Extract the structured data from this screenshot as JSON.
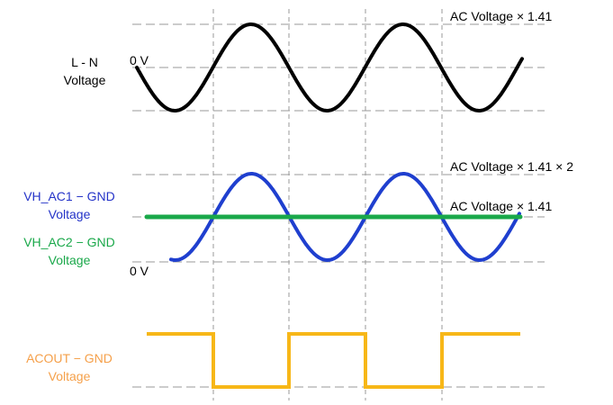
{
  "colors": {
    "grid": "#9a9a9a",
    "ln_wave": "#000000",
    "vh_ac1": "#1f3fcf",
    "vh_ac2": "#1aa84a",
    "acout": "#f7b718",
    "text_dark": "#000000",
    "text_blue": "#2433c8",
    "text_green": "#1aa84a",
    "text_orange": "#f5a04a"
  },
  "labels": {
    "ln_line1": "L - N",
    "ln_line2": "Voltage",
    "ln_zero": "0 V",
    "ln_peak": "AC Voltage × 1.41",
    "vh1_line1": "VH_AC1 − GND",
    "vh1_line2": "Voltage",
    "vh2_line1": "VH_AC2 − GND",
    "vh2_line2": "Voltage",
    "vh_zero": "0 V",
    "vh_peak2": "AC Voltage × 1.41 × 2",
    "vh_peak1": "AC Voltage × 1.41",
    "acout_line1": "ACOUT − GND",
    "acout_line2": "Voltage"
  }
}
